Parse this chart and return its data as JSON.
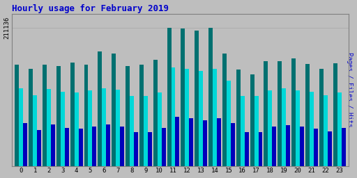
{
  "title": "Hourly usage for February 2019",
  "ylabel": "Pages / Files / Hits",
  "hours": [
    0,
    1,
    2,
    3,
    4,
    5,
    6,
    7,
    8,
    9,
    10,
    11,
    12,
    13,
    14,
    15,
    16,
    17,
    18,
    19,
    20,
    21,
    22,
    23
  ],
  "hits": [
    155000,
    148000,
    155000,
    152000,
    158000,
    155000,
    175000,
    172000,
    152000,
    155000,
    162000,
    211136,
    210000,
    207000,
    211136,
    171000,
    147000,
    140000,
    160000,
    160000,
    164000,
    156000,
    148000,
    157000
  ],
  "files": [
    118000,
    108000,
    117000,
    113000,
    112000,
    115000,
    118000,
    116000,
    107000,
    107000,
    112000,
    150000,
    148000,
    145000,
    148000,
    130000,
    107000,
    107000,
    115000,
    118000,
    115000,
    113000,
    108000,
    112000
  ],
  "pages": [
    65000,
    55000,
    63000,
    58000,
    57000,
    60000,
    63000,
    60000,
    52000,
    52000,
    58000,
    75000,
    73000,
    70000,
    73000,
    65000,
    52000,
    52000,
    60000,
    62000,
    60000,
    57000,
    53000,
    58000
  ],
  "hits_color": "#007070",
  "files_color": "#00d8d8",
  "pages_color": "#0000bb",
  "bg_color": "#bebebe",
  "plot_bg_color": "#bebebe",
  "title_color": "#0000cc",
  "ylabel_color": "#0000cc",
  "ymax": 211136,
  "ytick_label": "211136",
  "grid_color": "#a8a8a8"
}
